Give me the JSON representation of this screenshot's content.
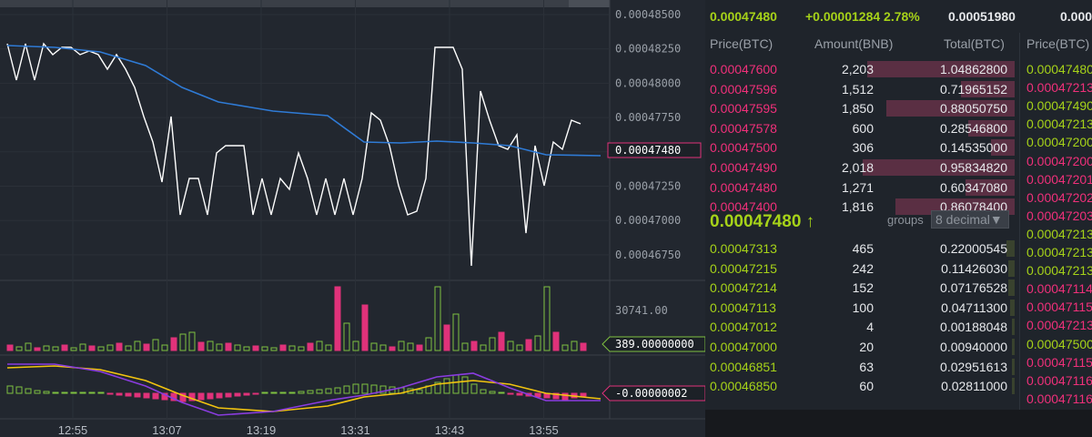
{
  "chart": {
    "price_labels": [
      "0.00048500",
      "0.00048250",
      "0.00048000",
      "0.00047750",
      "0.00047500",
      "0.00047250",
      "0.00047000",
      "0.00046750"
    ],
    "price_tag": "0.00047480",
    "volume_label": "30741.00",
    "volume_tag": "389.00000000",
    "macd_tag": "-0.00000002",
    "time_labels": [
      "12:55",
      "13:07",
      "13:19",
      "13:31",
      "13:43",
      "13:55"
    ],
    "colors": {
      "price_line": "#ffffff",
      "ma_line": "#2f7bd6",
      "up": "#7fc241",
      "down": "#e0327a",
      "signal": "#f2c40f",
      "macd": "#8a3ce0"
    }
  },
  "ticker": {
    "last_price": "0.00047480",
    "change": "+0.00001284 2.78%",
    "high": "0.00051980",
    "low": "0.000"
  },
  "orderbook": {
    "headers": {
      "price": "Price(BTC)",
      "amount": "Amount(BNB)",
      "total": "Total(BTC)",
      "price2": "Price(BTC)"
    },
    "asks": [
      {
        "price": "0.00047600",
        "amount": "2,203",
        "total": "1.04862800",
        "depth": 0.95
      },
      {
        "price": "0.00047596",
        "amount": "1,512",
        "total": "0.71965152",
        "depth": 0.35
      },
      {
        "price": "0.00047595",
        "amount": "1,850",
        "total": "0.88050750",
        "depth": 0.83
      },
      {
        "price": "0.00047578",
        "amount": "600",
        "total": "0.28546800",
        "depth": 0.3
      },
      {
        "price": "0.00047500",
        "amount": "306",
        "total": "0.14535000",
        "depth": 0.15
      },
      {
        "price": "0.00047490",
        "amount": "2,018",
        "total": "0.95834820",
        "depth": 0.98
      },
      {
        "price": "0.00047480",
        "amount": "1,271",
        "total": "0.60347080",
        "depth": 0.32
      },
      {
        "price": "0.00047400",
        "amount": "1,816",
        "total": "0.86078400",
        "depth": 0.77
      }
    ],
    "last": "0.00047480 ↑",
    "groups_label": "groups",
    "decimal_select": "8 decimal▼",
    "bids": [
      {
        "price": "0.00047313",
        "amount": "465",
        "total": "0.22000545",
        "depth": 0.05
      },
      {
        "price": "0.00047215",
        "amount": "242",
        "total": "0.11426030",
        "depth": 0.04
      },
      {
        "price": "0.00047214",
        "amount": "152",
        "total": "0.07176528",
        "depth": 0.04
      },
      {
        "price": "0.00047113",
        "amount": "100",
        "total": "0.04711300",
        "depth": 0.03
      },
      {
        "price": "0.00047012",
        "amount": "4",
        "total": "0.00188048",
        "depth": 0.02
      },
      {
        "price": "0.00047000",
        "amount": "20",
        "total": "0.00940000",
        "depth": 0.02
      },
      {
        "price": "0.00046851",
        "amount": "63",
        "total": "0.02951613",
        "depth": 0.02
      },
      {
        "price": "0.00046850",
        "amount": "60",
        "total": "0.02811000",
        "depth": 0.02
      }
    ],
    "trades": [
      {
        "price": "0.00047480",
        "side": "buy"
      },
      {
        "price": "0.00047213",
        "side": "sell"
      },
      {
        "price": "0.00047490",
        "side": "buy"
      },
      {
        "price": "0.00047213",
        "side": "buy"
      },
      {
        "price": "0.00047200",
        "side": "buy"
      },
      {
        "price": "0.00047200",
        "side": "sell"
      },
      {
        "price": "0.00047201",
        "side": "sell"
      },
      {
        "price": "0.00047202",
        "side": "sell"
      },
      {
        "price": "0.00047203",
        "side": "sell"
      },
      {
        "price": "0.00047213",
        "side": "buy"
      },
      {
        "price": "0.00047213",
        "side": "buy"
      },
      {
        "price": "0.00047213",
        "side": "buy"
      },
      {
        "price": "0.00047114",
        "side": "sell"
      },
      {
        "price": "0.00047115",
        "side": "sell"
      },
      {
        "price": "0.00047213",
        "side": "sell"
      },
      {
        "price": "0.00047500",
        "side": "buy"
      },
      {
        "price": "0.00047115",
        "side": "sell"
      },
      {
        "price": "0.00047116",
        "side": "sell"
      },
      {
        "price": "0.00047116",
        "side": "sell"
      }
    ]
  }
}
